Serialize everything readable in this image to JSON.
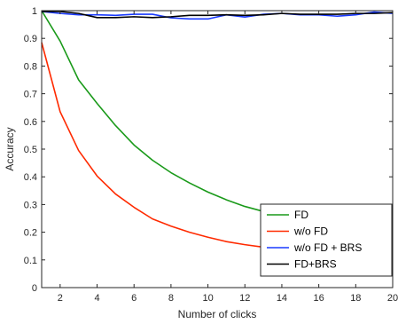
{
  "chart_data": {
    "type": "line",
    "xlabel": "Number of clicks",
    "ylabel": "Accuracy",
    "xlim": [
      1,
      20
    ],
    "ylim": [
      0,
      1
    ],
    "xticks": [
      2,
      4,
      6,
      8,
      10,
      12,
      14,
      16,
      18,
      20
    ],
    "yticks": [
      0,
      0.1,
      0.2,
      0.3,
      0.4,
      0.5,
      0.6,
      0.7,
      0.8,
      0.9,
      1
    ],
    "ytick_labels": [
      "0",
      "0.1",
      "0.2",
      "0.3",
      "0.4",
      "0.5",
      "0.6",
      "0.7",
      "0.8",
      "0.9",
      "1"
    ],
    "grid": false,
    "legend_position": "bottom-right",
    "x": [
      1,
      2,
      3,
      4,
      5,
      6,
      7,
      8,
      9,
      10,
      11,
      12,
      13,
      14,
      15,
      16,
      17,
      18,
      19,
      20
    ],
    "series": [
      {
        "name": "FD",
        "color": "#1a9a1a",
        "values": [
          1.0,
          0.89,
          0.75,
          0.665,
          0.585,
          0.515,
          0.46,
          0.415,
          0.378,
          0.345,
          0.317,
          0.293,
          0.275,
          0.258,
          0.243,
          0.228,
          0.215,
          0.203,
          0.193,
          0.185
        ]
      },
      {
        "name": "w/o FD",
        "color": "#ff2a00",
        "values": [
          0.885,
          0.635,
          0.495,
          0.403,
          0.338,
          0.29,
          0.248,
          0.222,
          0.2,
          0.182,
          0.166,
          0.155,
          0.146,
          0.138,
          0.131,
          0.124,
          0.116,
          0.109,
          0.103,
          0.097
        ]
      },
      {
        "name": "w/o FD + BRS",
        "color": "#1a3aff",
        "values": [
          0.997,
          0.99,
          0.985,
          0.985,
          0.983,
          0.987,
          0.987,
          0.974,
          0.97,
          0.97,
          0.985,
          0.977,
          0.987,
          0.99,
          0.985,
          0.985,
          0.98,
          0.985,
          0.995,
          0.99
        ]
      },
      {
        "name": "FD+BRS",
        "color": "#000000",
        "values": [
          0.997,
          0.997,
          0.99,
          0.975,
          0.975,
          0.978,
          0.975,
          0.978,
          0.983,
          0.983,
          0.985,
          0.983,
          0.985,
          0.99,
          0.987,
          0.987,
          0.987,
          0.99,
          0.99,
          0.993
        ]
      }
    ]
  }
}
